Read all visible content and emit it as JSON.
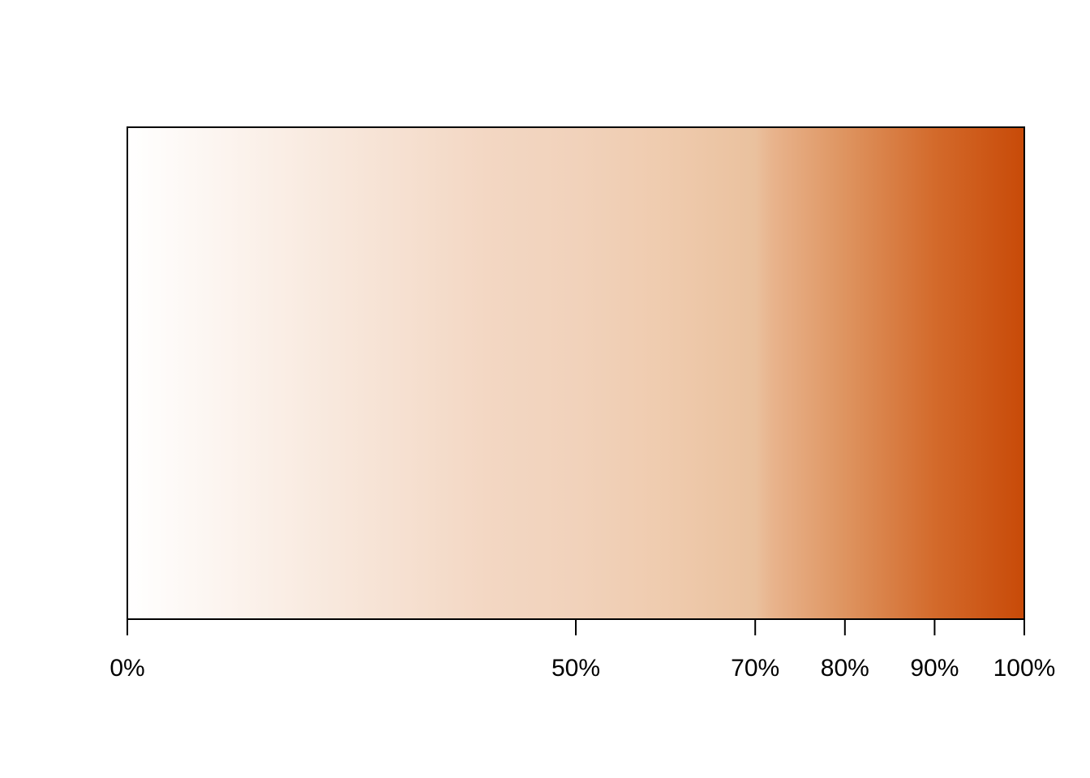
{
  "chart_data": {
    "type": "heatmap",
    "title": "",
    "xlabel": "",
    "ylabel": "",
    "xlim": [
      0,
      100
    ],
    "grid": false,
    "legend": "none",
    "ticks": [
      {
        "value": 0,
        "label": "0%"
      },
      {
        "value": 50,
        "label": "50%"
      },
      {
        "value": 70,
        "label": "70%"
      },
      {
        "value": 80,
        "label": "80%"
      },
      {
        "value": 90,
        "label": "90%"
      },
      {
        "value": 100,
        "label": "100%"
      }
    ],
    "color_stops": [
      {
        "value": 0,
        "color": "#ffffff"
      },
      {
        "value": 10,
        "color": "#fcf5f0"
      },
      {
        "value": 20,
        "color": "#f9ebe1"
      },
      {
        "value": 30,
        "color": "#f6e1d2"
      },
      {
        "value": 40,
        "color": "#f3d7c3"
      },
      {
        "value": 50,
        "color": "#f1d2bb"
      },
      {
        "value": 60,
        "color": "#efcbae"
      },
      {
        "value": 70,
        "color": "#eac19e"
      },
      {
        "value": 72,
        "color": "#e8b38c"
      },
      {
        "value": 80,
        "color": "#de9460"
      },
      {
        "value": 90,
        "color": "#d36a2b"
      },
      {
        "value": 100,
        "color": "#c84a08"
      }
    ],
    "axis_color": "#000000"
  }
}
